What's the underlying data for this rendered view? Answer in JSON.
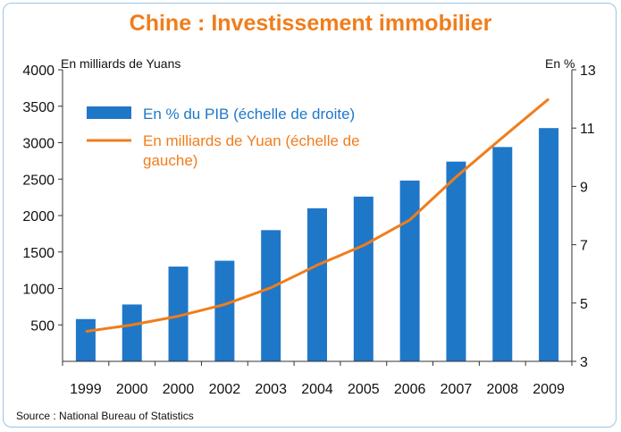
{
  "chart_data": {
    "type": "bar",
    "title": "Chine : Investissement immobilier",
    "ylabel_left": "En milliards de Yuans",
    "ylabel_right": "En %",
    "source": "Source : National Bureau of Statistics",
    "categories": [
      "1999",
      "2000",
      "2000",
      "2002",
      "2003",
      "2004",
      "2005",
      "2006",
      "2007",
      "2008",
      "2009"
    ],
    "ylim_left": [
      0,
      4000
    ],
    "yticks_left": [
      "500",
      "1000",
      "1500",
      "2000",
      "2500",
      "3000",
      "3500",
      "4000"
    ],
    "ylim_right": [
      3,
      13
    ],
    "yticks_right": [
      "3",
      "5",
      "7",
      "9",
      "11",
      "13"
    ],
    "grid": false,
    "legend_position": "top-left",
    "series": [
      {
        "name": "En % du PIB (échelle de droite)",
        "kind": "bar",
        "axis": "right",
        "color": "#1f77c8",
        "values": [
          4.45,
          4.95,
          6.25,
          6.45,
          7.5,
          8.25,
          8.65,
          9.2,
          9.85,
          10.35,
          11.0
        ]
      },
      {
        "name": "En milliards de Yuan (échelle de gauche)",
        "kind": "line",
        "axis": "left",
        "color": "#f07d1b",
        "values": [
          410,
          500,
          620,
          780,
          1010,
          1320,
          1590,
          1940,
          2530,
          3070,
          3600
        ]
      }
    ],
    "legend": [
      {
        "label_line1": "En % du PIB (échelle de droite)",
        "label_line2": "",
        "color": "#1f77c8"
      },
      {
        "label_line1": "En milliards de Yuan (échelle de",
        "label_line2": "gauche)",
        "color": "#f07d1b"
      }
    ]
  }
}
